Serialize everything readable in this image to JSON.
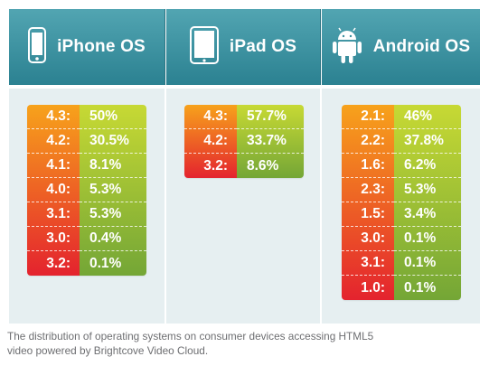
{
  "colors": {
    "header_top": "#52a5b2",
    "header_bottom": "#2b8191",
    "panel_bg": "#e6eff1",
    "version_gradient": [
      "#f7a21b",
      "#e4232e"
    ],
    "percent_gradient": [
      "#c7d934",
      "#74a636"
    ],
    "caption_text": "#6d6e71"
  },
  "chart_data": [
    {
      "type": "table",
      "title": "iPhone OS",
      "icon": "iphone-icon",
      "rows": [
        {
          "version": "4.3:",
          "share": "50%"
        },
        {
          "version": "4.2:",
          "share": "30.5%"
        },
        {
          "version": "4.1:",
          "share": "8.1%"
        },
        {
          "version": "4.0:",
          "share": "5.3%"
        },
        {
          "version": "3.1:",
          "share": "5.3%"
        },
        {
          "version": "3.0:",
          "share": "0.4%"
        },
        {
          "version": "3.2:",
          "share": "0.1%"
        }
      ]
    },
    {
      "type": "table",
      "title": "iPad OS",
      "icon": "ipad-icon",
      "rows": [
        {
          "version": "4.3:",
          "share": "57.7%"
        },
        {
          "version": "4.2:",
          "share": "33.7%"
        },
        {
          "version": "3.2:",
          "share": "8.6%"
        }
      ]
    },
    {
      "type": "table",
      "title": "Android OS",
      "icon": "android-icon",
      "rows": [
        {
          "version": "2.1:",
          "share": "46%"
        },
        {
          "version": "2.2:",
          "share": "37.8%"
        },
        {
          "version": "1.6:",
          "share": "6.2%"
        },
        {
          "version": "2.3:",
          "share": "5.3%"
        },
        {
          "version": "1.5:",
          "share": "3.4%"
        },
        {
          "version": "3.0:",
          "share": "0.1%"
        },
        {
          "version": "3.1:",
          "share": "0.1%"
        },
        {
          "version": "1.0:",
          "share": "0.1%"
        }
      ]
    }
  ],
  "caption": {
    "line1": "The distribution of operating systems on consumer devices accessing HTML5",
    "line2": "video powered by Brightcove Video Cloud."
  }
}
